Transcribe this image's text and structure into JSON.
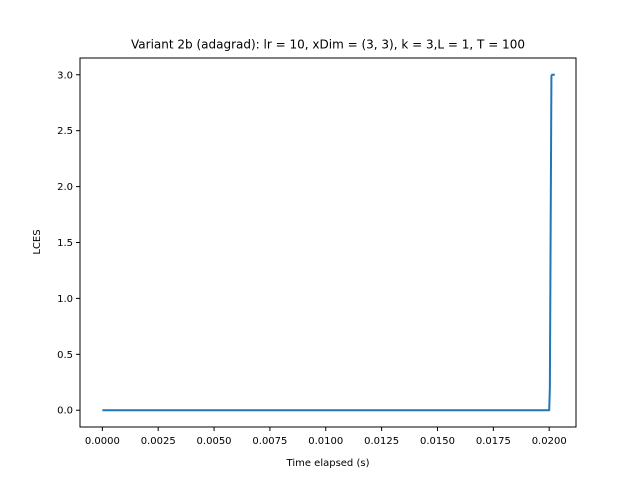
{
  "chart_data": {
    "type": "line",
    "title": "Variant 2b (adagrad): lr = 10, xDim = (3, 3), k = 3,L = 1, T = 100",
    "xlabel": "Time elapsed (s)",
    "ylabel": "LCES",
    "xlim": [
      -0.001,
      0.0212
    ],
    "ylim": [
      -0.15,
      3.15
    ],
    "xticks": [
      0.0,
      0.0025,
      0.005,
      0.0075,
      0.01,
      0.0125,
      0.015,
      0.0175,
      0.02
    ],
    "xtick_labels": [
      "0.0000",
      "0.0025",
      "0.0050",
      "0.0075",
      "0.0100",
      "0.0125",
      "0.0150",
      "0.0175",
      "0.0200"
    ],
    "yticks": [
      0.0,
      0.5,
      1.0,
      1.5,
      2.0,
      2.5,
      3.0
    ],
    "ytick_labels": [
      "0.0",
      "0.5",
      "1.0",
      "1.5",
      "2.0",
      "2.5",
      "3.0"
    ],
    "grid": false,
    "series": [
      {
        "name": "LCES",
        "color": "#1f77b4",
        "x": [
          0.0,
          0.02,
          0.02003,
          0.0201,
          0.02013,
          0.02025
        ],
        "y": [
          0.0,
          0.0,
          0.2,
          2.99,
          3.0,
          3.0
        ]
      }
    ]
  }
}
